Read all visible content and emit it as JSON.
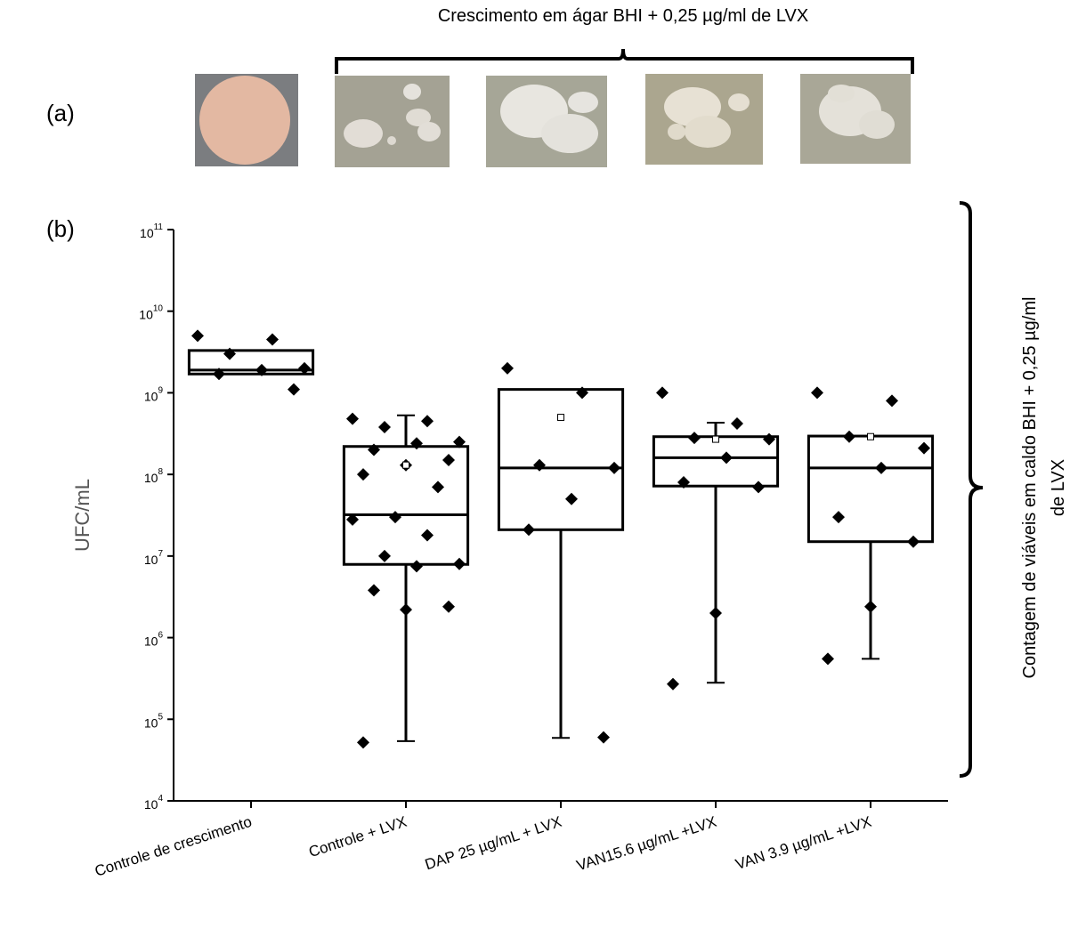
{
  "panel_a": {
    "label": "(a)",
    "caption": "Crescimento em ágar BHI + 0,25 µg/ml de LVX"
  },
  "chart_data": {
    "type": "box",
    "panel_label": "(b)",
    "y_label": "UFC/mL",
    "side_label": [
      "Contagem de viáveis em caldo BHI + 0,25 µg/ml",
      "de LVX"
    ],
    "log_scale": true,
    "ylim": [
      10000,
      100000000000
    ],
    "yticks": [
      {
        "value": 10000,
        "label": "10",
        "sup": "4"
      },
      {
        "value": 100000,
        "label": "10",
        "sup": "5"
      },
      {
        "value": 1000000,
        "label": "10",
        "sup": "6"
      },
      {
        "value": 10000000,
        "label": "10",
        "sup": "7"
      },
      {
        "value": 100000000,
        "label": "10",
        "sup": "8"
      },
      {
        "value": 1000000000,
        "label": "10",
        "sup": "9"
      },
      {
        "value": 10000000000,
        "label": "10",
        "sup": "10"
      },
      {
        "value": 100000000000,
        "label": "10",
        "sup": "11"
      }
    ],
    "categories": [
      "Controle de crescimento",
      "Controle + LVX",
      "DAP 25 µg/mL + LVX",
      "VAN15.6 µg/mL +LVX",
      "VAN 3.9 µg/mL +LVX"
    ],
    "color": "#000000",
    "boxes": [
      {
        "q1": 1700000000,
        "median": 1900000000,
        "q3": 3300000000,
        "whisker_low": null,
        "whisker_high": null,
        "mean": null
      },
      {
        "q1": 7900000,
        "median": 32000000,
        "q3": 220000000,
        "whisker_low": 54000,
        "whisker_high": 530000000,
        "mean": 130000000
      },
      {
        "q1": 21000000,
        "median": 120000000,
        "q3": 1100000000,
        "whisker_low": 59000,
        "whisker_high": null,
        "mean": 500000000
      },
      {
        "q1": 72000000,
        "median": 160000000,
        "q3": 290000000,
        "whisker_low": 280000,
        "whisker_high": 430000000,
        "mean": 270000000
      },
      {
        "q1": 15000000,
        "median": 120000000,
        "q3": 295000000,
        "whisker_low": 550000,
        "whisker_high": null,
        "mean": 290000000
      }
    ],
    "points": [
      [
        5000000000,
        4500000000,
        3000000000,
        2000000000,
        1900000000,
        1700000000,
        1100000000
      ],
      [
        480000000,
        450000000,
        380000000,
        250000000,
        240000000,
        200000000,
        150000000,
        130000000,
        100000000,
        70000000,
        30000000,
        28000000,
        18000000,
        10000000,
        8000000,
        7500000,
        3800000,
        2400000,
        2200000,
        52000
      ],
      [
        2000000000,
        1000000000,
        130000000,
        120000000,
        50000000,
        21000000,
        60000
      ],
      [
        1000000000,
        420000000,
        280000000,
        270000000,
        160000000,
        80000000,
        70000000,
        2000000,
        270000
      ],
      [
        1000000000,
        800000000,
        290000000,
        210000000,
        120000000,
        30000000,
        15000000,
        2400000,
        550000
      ]
    ]
  }
}
